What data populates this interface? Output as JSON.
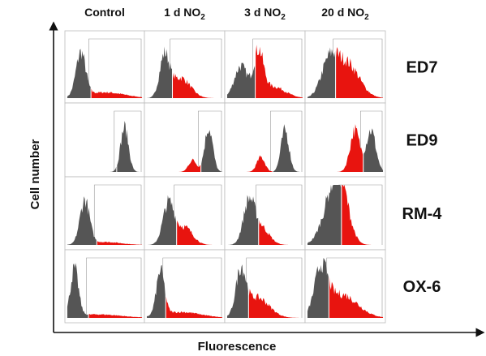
{
  "columns": [
    {
      "text": "Control"
    },
    {
      "text": "1 d NO",
      "subscript": "2"
    },
    {
      "text": "3 d NO",
      "subscript": "2"
    },
    {
      "text": "20 d NO",
      "subscript": "2"
    }
  ],
  "rows": [
    "ED7",
    "ED9",
    "RM-4",
    "OX-6"
  ],
  "y_axis_label": "Cell number",
  "x_axis_label": "Fluorescence"
}
